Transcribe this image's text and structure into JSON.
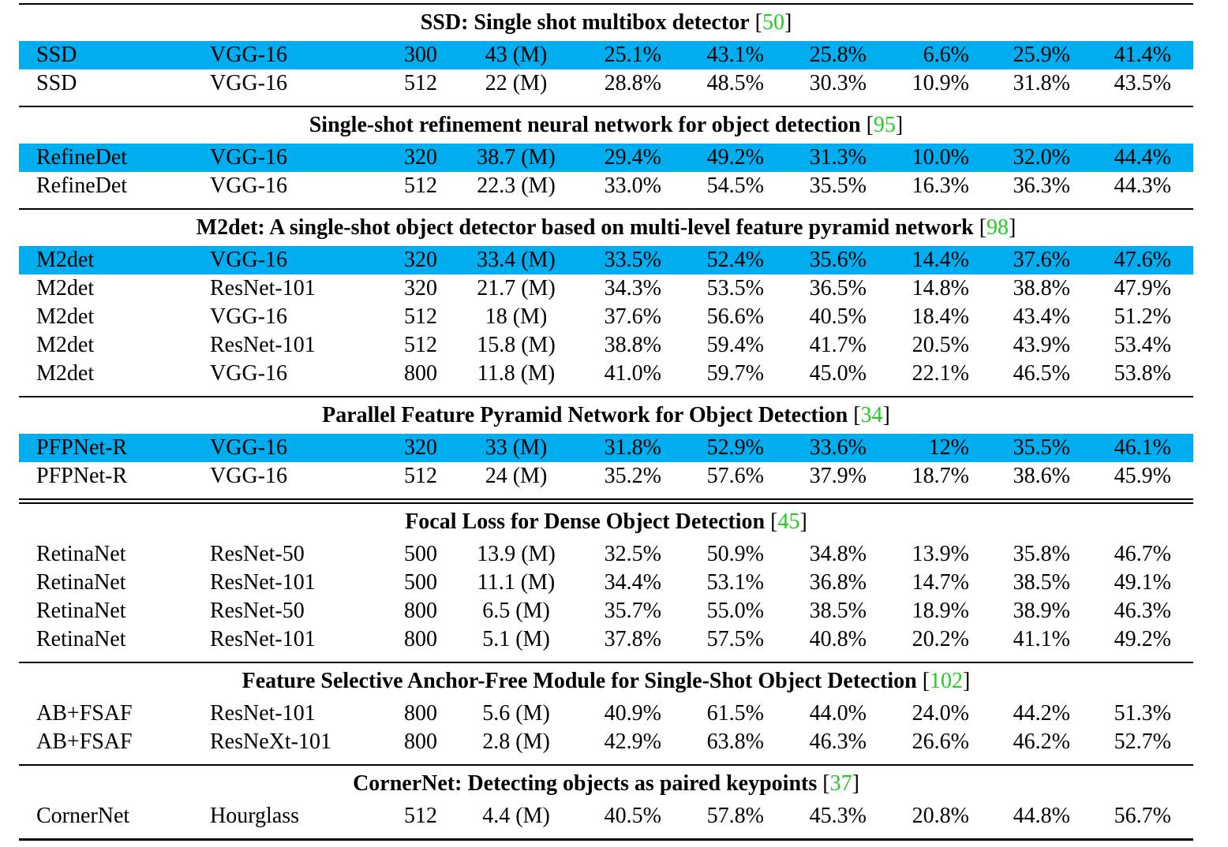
{
  "sections": [
    {
      "title": "SSD: Single shot multibox detector",
      "cite": "50",
      "rows": [
        {
          "highlight": true,
          "cells": [
            "SSD",
            "VGG-16",
            "300",
            "43 (M)",
            "25.1%",
            "43.1%",
            "25.8%",
            "6.6%",
            "25.9%",
            "41.4%"
          ]
        },
        {
          "highlight": false,
          "cells": [
            "SSD",
            "VGG-16",
            "512",
            "22 (M)",
            "28.8%",
            "48.5%",
            "30.3%",
            "10.9%",
            "31.8%",
            "43.5%"
          ]
        }
      ]
    },
    {
      "title": "Single-shot refinement neural network for object detection",
      "cite": "95",
      "rows": [
        {
          "highlight": true,
          "cells": [
            "RefineDet",
            "VGG-16",
            "320",
            "38.7 (M)",
            "29.4%",
            "49.2%",
            "31.3%",
            "10.0%",
            "32.0%",
            "44.4%"
          ]
        },
        {
          "highlight": false,
          "cells": [
            "RefineDet",
            "VGG-16",
            "512",
            "22.3 (M)",
            "33.0%",
            "54.5%",
            "35.5%",
            "16.3%",
            "36.3%",
            "44.3%"
          ]
        }
      ]
    },
    {
      "title": "M2det: A single-shot object detector based on multi-level feature pyramid network",
      "cite": "98",
      "rows": [
        {
          "highlight": true,
          "cells": [
            "M2det",
            "VGG-16",
            "320",
            "33.4 (M)",
            "33.5%",
            "52.4%",
            "35.6%",
            "14.4%",
            "37.6%",
            "47.6%"
          ]
        },
        {
          "highlight": false,
          "cells": [
            "M2det",
            "ResNet-101",
            "320",
            "21.7 (M)",
            "34.3%",
            "53.5%",
            "36.5%",
            "14.8%",
            "38.8%",
            "47.9%"
          ]
        },
        {
          "highlight": false,
          "cells": [
            "M2det",
            "VGG-16",
            "512",
            "18 (M)",
            "37.6%",
            "56.6%",
            "40.5%",
            "18.4%",
            "43.4%",
            "51.2%"
          ]
        },
        {
          "highlight": false,
          "cells": [
            "M2det",
            "ResNet-101",
            "512",
            "15.8 (M)",
            "38.8%",
            "59.4%",
            "41.7%",
            "20.5%",
            "43.9%",
            "53.4%"
          ]
        },
        {
          "highlight": false,
          "cells": [
            "M2det",
            "VGG-16",
            "800",
            "11.8 (M)",
            "41.0%",
            "59.7%",
            "45.0%",
            "22.1%",
            "46.5%",
            "53.8%"
          ]
        }
      ]
    },
    {
      "title": "Parallel Feature Pyramid Network for Object Detection",
      "cite": "34",
      "rows": [
        {
          "highlight": true,
          "cells": [
            "PFPNet-R",
            "VGG-16",
            "320",
            "33 (M)",
            "31.8%",
            "52.9%",
            "33.6%",
            "12%",
            "35.5%",
            "46.1%"
          ]
        },
        {
          "highlight": false,
          "cells": [
            "PFPNet-R",
            "VGG-16",
            "512",
            "24 (M)",
            "35.2%",
            "57.6%",
            "37.9%",
            "18.7%",
            "38.6%",
            "45.9%"
          ]
        }
      ]
    },
    {
      "title": "Focal Loss for Dense Object Detection",
      "cite": "45",
      "rows": [
        {
          "highlight": false,
          "cells": [
            "RetinaNet",
            "ResNet-50",
            "500",
            "13.9 (M)",
            "32.5%",
            "50.9%",
            "34.8%",
            "13.9%",
            "35.8%",
            "46.7%"
          ]
        },
        {
          "highlight": false,
          "cells": [
            "RetinaNet",
            "ResNet-101",
            "500",
            "11.1 (M)",
            "34.4%",
            "53.1%",
            "36.8%",
            "14.7%",
            "38.5%",
            "49.1%"
          ]
        },
        {
          "highlight": false,
          "cells": [
            "RetinaNet",
            "ResNet-50",
            "800",
            "6.5 (M)",
            "35.7%",
            "55.0%",
            "38.5%",
            "18.9%",
            "38.9%",
            "46.3%"
          ]
        },
        {
          "highlight": false,
          "cells": [
            "RetinaNet",
            "ResNet-101",
            "800",
            "5.1 (M)",
            "37.8%",
            "57.5%",
            "40.8%",
            "20.2%",
            "41.1%",
            "49.2%"
          ]
        }
      ]
    },
    {
      "title": "Feature Selective Anchor-Free Module for Single-Shot Object Detection",
      "cite": "102",
      "rows": [
        {
          "highlight": false,
          "cells": [
            "AB+FSAF",
            "ResNet-101",
            "800",
            "5.6 (M)",
            "40.9%",
            "61.5%",
            "44.0%",
            "24.0%",
            "44.2%",
            "51.3%"
          ]
        },
        {
          "highlight": false,
          "cells": [
            "AB+FSAF",
            "ResNeXt-101",
            "800",
            "2.8 (M)",
            "42.9%",
            "63.8%",
            "46.3%",
            "26.6%",
            "46.2%",
            "52.7%"
          ]
        }
      ]
    },
    {
      "title": "CornerNet: Detecting objects as paired keypoints",
      "cite": "37",
      "rows": [
        {
          "highlight": false,
          "cells": [
            "CornerNet",
            "Hourglass",
            "512",
            "4.4 (M)",
            "40.5%",
            "57.8%",
            "45.3%",
            "20.8%",
            "44.8%",
            "56.7%"
          ]
        }
      ]
    }
  ],
  "colors": {
    "highlight": "#00aeef",
    "citation": "#22cc22",
    "rule": "#000000"
  }
}
